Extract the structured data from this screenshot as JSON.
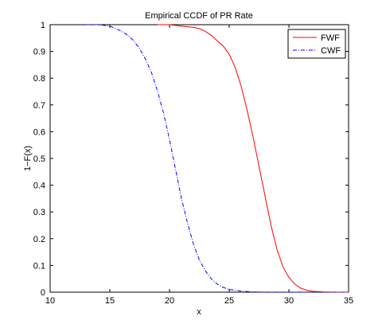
{
  "chart_data": {
    "type": "line",
    "title": "Empirical CCDF of PR Rate",
    "xlabel": "x",
    "ylabel": "1−F(x)",
    "xlim": [
      10,
      35
    ],
    "ylim": [
      0,
      1
    ],
    "xticks": [
      10,
      15,
      20,
      25,
      30,
      35
    ],
    "yticks": [
      0,
      0.1,
      0.2,
      0.3,
      0.4,
      0.5,
      0.6,
      0.7,
      0.8,
      0.9,
      1
    ],
    "grid": false,
    "legend_position": "top-right",
    "series": [
      {
        "name": "FWF",
        "color": "#ff0000",
        "style": "solid",
        "x": [
          19,
          20,
          21,
          22,
          22.5,
          23,
          23.5,
          24,
          24.5,
          25,
          25.5,
          26,
          26.5,
          27,
          27.5,
          28,
          28.5,
          29,
          29.5,
          30,
          30.5,
          31,
          31.5,
          32,
          33,
          34,
          35
        ],
        "y": [
          1,
          1,
          0.995,
          0.99,
          0.985,
          0.975,
          0.96,
          0.94,
          0.92,
          0.89,
          0.84,
          0.77,
          0.68,
          0.58,
          0.47,
          0.36,
          0.25,
          0.16,
          0.095,
          0.055,
          0.03,
          0.015,
          0.007,
          0.003,
          0.001,
          0,
          0
        ]
      },
      {
        "name": "CWF",
        "color": "#0000ff",
        "style": "dashdot",
        "x": [
          13,
          14,
          15,
          15.5,
          16,
          16.5,
          17,
          17.5,
          18,
          18.5,
          19,
          19.5,
          20,
          20.5,
          21,
          21.5,
          22,
          22.5,
          23,
          23.5,
          24,
          24.5,
          25,
          26,
          27,
          28,
          30,
          35
        ],
        "y": [
          1,
          1,
          0.995,
          0.985,
          0.975,
          0.96,
          0.94,
          0.91,
          0.87,
          0.82,
          0.75,
          0.67,
          0.57,
          0.46,
          0.35,
          0.26,
          0.18,
          0.12,
          0.08,
          0.05,
          0.03,
          0.018,
          0.01,
          0.004,
          0.001,
          0,
          0,
          0
        ]
      }
    ]
  }
}
